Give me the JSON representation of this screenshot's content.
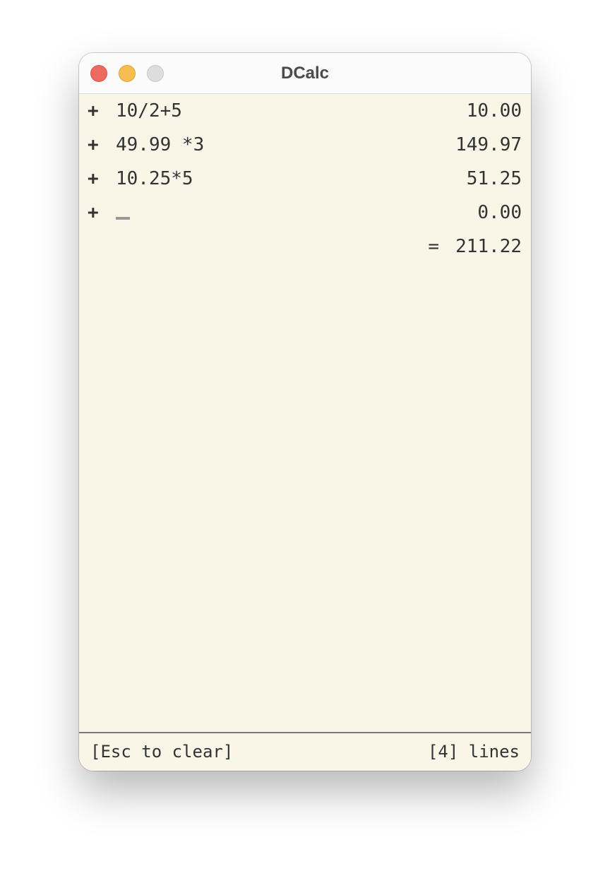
{
  "window": {
    "title": "DCalc"
  },
  "lines": [
    {
      "op": "+",
      "expr": "10/2+5",
      "result": "10.00"
    },
    {
      "op": "+",
      "expr": "49.99 *3",
      "result": "149.97"
    },
    {
      "op": "+",
      "expr": "10.25*5",
      "result": "51.25"
    },
    {
      "op": "+",
      "expr": "",
      "result": "0.00"
    }
  ],
  "total": {
    "symbol": "=",
    "value": "211.22"
  },
  "status": {
    "hint": "[Esc to clear]",
    "line_count": "[4] lines"
  },
  "colors": {
    "background": "#faf6e7",
    "close": "#ed6a5e",
    "minimize": "#f5be4f",
    "zoom": "#dddddd"
  }
}
